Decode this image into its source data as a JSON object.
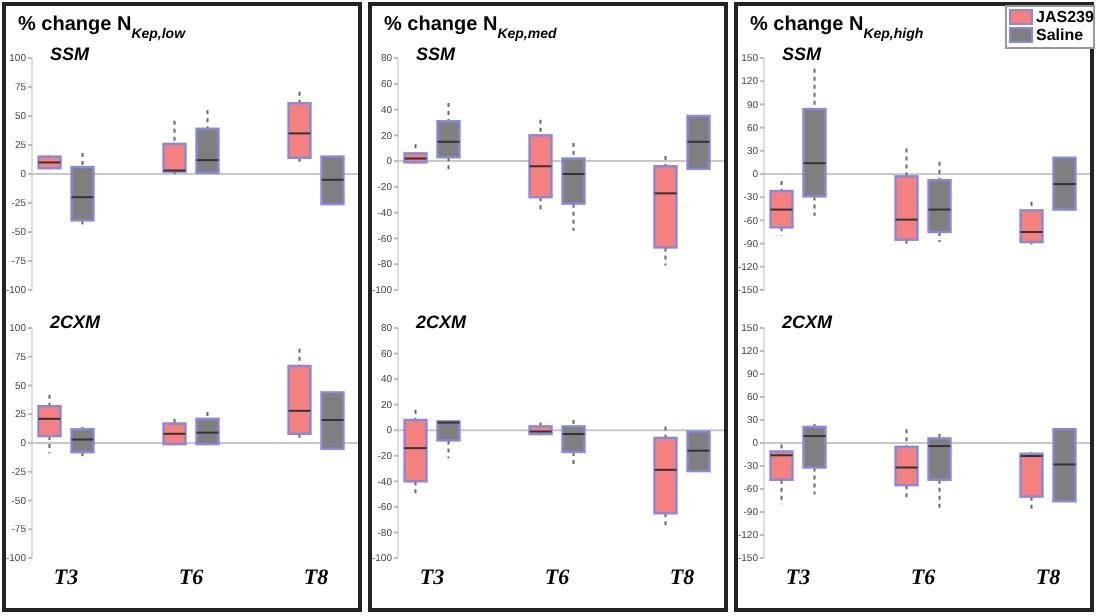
{
  "chart_data": [
    {
      "type": "box",
      "title": "% change N$_{Kep,low}$",
      "subtitle": "SSM",
      "categories": [
        null,
        null,
        null
      ],
      "ylim": [
        -100,
        100
      ],
      "yticks": [
        -100,
        -75,
        -50,
        -25,
        0,
        25,
        50,
        75,
        100
      ],
      "ref_lines": [
        {
          "axis": "y",
          "value": 0,
          "color": "#c8c8c8"
        }
      ],
      "series": [
        {
          "color": "#f4807f",
          "boxes": [
            {
              "low": 4,
              "q1": 5,
              "median": 10,
              "q3": 15,
              "high": 16
            },
            {
              "low": 0,
              "q1": 2,
              "median": 3,
              "q3": 26,
              "high": 46
            },
            {
              "low": 8,
              "q1": 14,
              "median": 35,
              "q3": 61,
              "high": 71
            }
          ]
        },
        {
          "color": "#7f7f7f",
          "boxes": [
            {
              "low": -46,
              "q1": -40,
              "median": -20,
              "q3": 6,
              "high": 18
            },
            {
              "low": 1,
              "q1": 1,
              "median": 12,
              "q3": 39,
              "high": 55
            },
            {
              "low": -26,
              "q1": -26,
              "median": -5,
              "q3": 15,
              "high": 15
            }
          ]
        }
      ]
    },
    {
      "type": "box",
      "subtitle": "2CXM",
      "categories": [
        "T3",
        "T6",
        "T8"
      ],
      "ylim": [
        -100,
        100
      ],
      "yticks": [
        -100,
        -75,
        -50,
        -25,
        0,
        25,
        50,
        75,
        100
      ],
      "ref_lines": [
        {
          "axis": "y",
          "value": 0,
          "color": "#c8c8c8"
        }
      ],
      "series": [
        {
          "color": "#f4807f",
          "boxes": [
            {
              "low": -9,
              "q1": 6,
              "median": 21,
              "q3": 32,
              "high": 42
            },
            {
              "low": -2,
              "q1": -1,
              "median": 8,
              "q3": 17,
              "high": 21
            },
            {
              "low": 1,
              "q1": 8,
              "median": 28,
              "q3": 67,
              "high": 82
            }
          ]
        },
        {
          "color": "#7f7f7f",
          "boxes": [
            {
              "low": -12,
              "q1": -8,
              "median": 3,
              "q3": 12,
              "high": 14
            },
            {
              "low": -2,
              "q1": -1,
              "median": 9,
              "q3": 21,
              "high": 27
            },
            {
              "low": -5,
              "q1": -5,
              "median": 20,
              "q3": 44,
              "high": 44
            }
          ]
        }
      ]
    },
    {
      "type": "box",
      "title": "% change N$_{Kep,med}$",
      "subtitle": "SSM",
      "categories": [
        null,
        null,
        null
      ],
      "ylim": [
        -100,
        80
      ],
      "yticks": [
        -100,
        -80,
        -60,
        -40,
        -20,
        0,
        20,
        40,
        60,
        80
      ],
      "ref_lines": [
        {
          "axis": "y",
          "value": 0,
          "color": "#c8c8c8"
        }
      ],
      "series": [
        {
          "color": "#f4807f",
          "boxes": [
            {
              "low": -2,
              "q1": -1,
              "median": 2,
              "q3": 6,
              "high": 13
            },
            {
              "low": -39,
              "q1": -28,
              "median": -4,
              "q3": 20,
              "high": 32
            },
            {
              "low": -81,
              "q1": -67,
              "median": -25,
              "q3": -4,
              "high": 4
            }
          ]
        },
        {
          "color": "#7f7f7f",
          "boxes": [
            {
              "low": -7,
              "q1": 3,
              "median": 15,
              "q3": 31,
              "high": 45
            },
            {
              "low": -54,
              "q1": -33,
              "median": -10,
              "q3": 2,
              "high": 14
            },
            {
              "low": -6,
              "q1": -6,
              "median": 15,
              "q3": 35,
              "high": 35
            }
          ]
        }
      ]
    },
    {
      "type": "box",
      "subtitle": "2CXM",
      "categories": [
        "T3",
        "T6",
        "T8"
      ],
      "ylim": [
        -100,
        80
      ],
      "yticks": [
        -100,
        -80,
        -60,
        -40,
        -20,
        0,
        20,
        40,
        60,
        80
      ],
      "ref_lines": [
        {
          "axis": "y",
          "value": 0,
          "color": "#c8c8c8"
        }
      ],
      "series": [
        {
          "color": "#f4807f",
          "boxes": [
            {
              "low": -52,
              "q1": -40,
              "median": -14,
              "q3": 8,
              "high": 16
            },
            {
              "low": -4,
              "q1": -3,
              "median": -1,
              "q3": 3,
              "high": 6
            },
            {
              "low": -77,
              "q1": -65,
              "median": -31,
              "q3": -6,
              "high": 3
            }
          ]
        },
        {
          "color": "#7f7f7f",
          "boxes": [
            {
              "low": -22,
              "q1": -8,
              "median": 6,
              "q3": 7,
              "high": 7
            },
            {
              "low": -29,
              "q1": -17,
              "median": -3,
              "q3": 3,
              "high": 8
            },
            {
              "low": -32,
              "q1": -32,
              "median": -16,
              "q3": -1,
              "high": -1
            }
          ]
        }
      ]
    },
    {
      "type": "box",
      "title": "% change N$_{Kep,high}$",
      "subtitle": "SSM",
      "categories": [
        null,
        null,
        null
      ],
      "legend": "top right",
      "ylim": [
        -150,
        150
      ],
      "yticks": [
        -150,
        -120,
        -90,
        -60,
        -30,
        0,
        30,
        60,
        90,
        120,
        150
      ],
      "ref_lines": [
        {
          "axis": "y",
          "value": 0,
          "color": "#c8c8c8"
        }
      ],
      "series": [
        {
          "name": "JAS239",
          "color": "#f4807f",
          "boxes": [
            {
              "low": -80,
              "q1": -69,
              "median": -46,
              "q3": -22,
              "high": -9
            },
            {
              "low": -91,
              "q1": -85,
              "median": -59,
              "q3": -3,
              "high": 33
            },
            {
              "low": -91,
              "q1": -88,
              "median": -75,
              "q3": -47,
              "high": -36
            }
          ]
        },
        {
          "name": "Saline",
          "color": "#7f7f7f",
          "boxes": [
            {
              "low": -54,
              "q1": -29,
              "median": 14,
              "q3": 84,
              "high": 136
            },
            {
              "low": -88,
              "q1": -75,
              "median": -46,
              "q3": -8,
              "high": 16
            },
            {
              "low": -46,
              "q1": -46,
              "median": -13,
              "q3": 21,
              "high": 21
            }
          ]
        }
      ]
    },
    {
      "type": "box",
      "subtitle": "2CXM",
      "categories": [
        "T3",
        "T6",
        "T8"
      ],
      "ylim": [
        -150,
        150
      ],
      "yticks": [
        -150,
        -120,
        -90,
        -60,
        -30,
        0,
        30,
        60,
        90,
        120,
        150
      ],
      "ref_lines": [
        {
          "axis": "y",
          "value": 0,
          "color": "#c8c8c8"
        }
      ],
      "series": [
        {
          "color": "#f4807f",
          "boxes": [
            {
              "low": -80,
              "q1": -48,
              "median": -16,
              "q3": -11,
              "high": -2
            },
            {
              "low": -72,
              "q1": -55,
              "median": -32,
              "q3": -5,
              "high": 18
            },
            {
              "low": -88,
              "q1": -70,
              "median": -17,
              "q3": -14,
              "high": -12
            }
          ]
        },
        {
          "color": "#7f7f7f",
          "boxes": [
            {
              "low": -67,
              "q1": -32,
              "median": 9,
              "q3": 21,
              "high": 25
            },
            {
              "low": -85,
              "q1": -48,
              "median": -4,
              "q3": 6,
              "high": 12
            },
            {
              "low": -76,
              "q1": -76,
              "median": -28,
              "q3": 18,
              "high": 18
            }
          ]
        }
      ]
    }
  ]
}
